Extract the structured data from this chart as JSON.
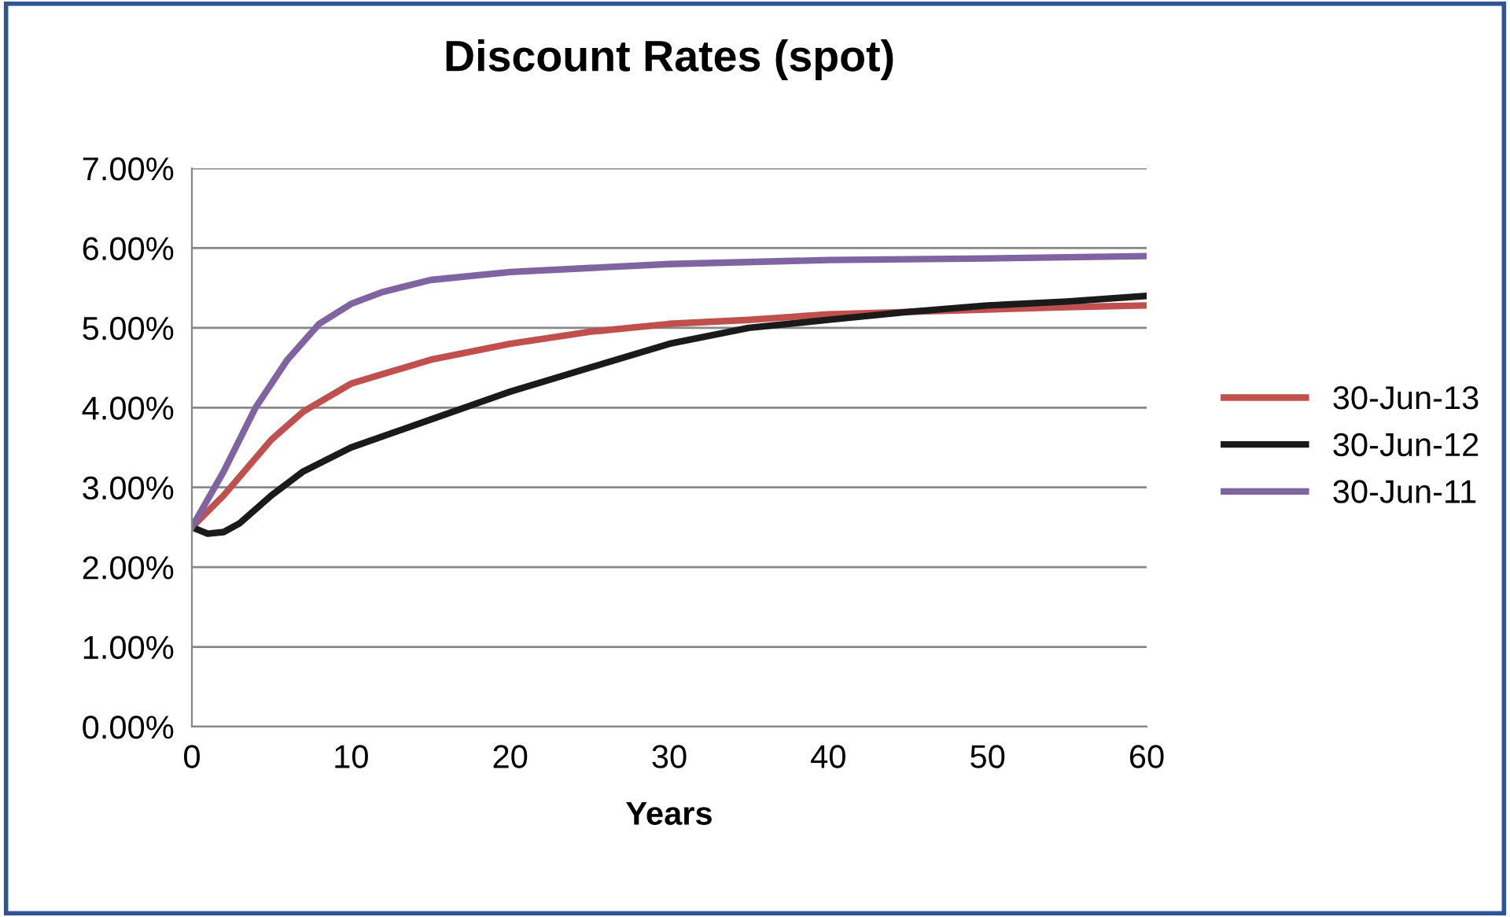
{
  "chart_data": {
    "type": "line",
    "title": "Discount Rates (spot)",
    "xlabel": "Years",
    "series": [
      {
        "name": "30-Jun-13",
        "color": "#c0504d",
        "x": [
          0,
          2,
          5,
          7,
          10,
          15,
          20,
          25,
          30,
          35,
          40,
          45,
          50,
          55,
          60
        ],
        "values": [
          2.5,
          2.9,
          3.6,
          3.95,
          4.3,
          4.6,
          4.8,
          4.95,
          5.05,
          5.1,
          5.17,
          5.2,
          5.23,
          5.26,
          5.28
        ]
      },
      {
        "name": "30-Jun-12",
        "color": "#1a1a1a",
        "x": [
          0,
          1,
          2,
          3,
          5,
          7,
          10,
          15,
          20,
          25,
          30,
          35,
          40,
          45,
          50,
          55,
          60
        ],
        "values": [
          2.5,
          2.42,
          2.44,
          2.55,
          2.9,
          3.2,
          3.5,
          3.85,
          4.2,
          4.5,
          4.8,
          5.0,
          5.1,
          5.2,
          5.28,
          5.33,
          5.4
        ]
      },
      {
        "name": "30-Jun-11",
        "color": "#8064a2",
        "x": [
          0,
          2,
          4,
          6,
          8,
          10,
          12,
          15,
          20,
          25,
          30,
          40,
          50,
          60
        ],
        "values": [
          2.5,
          3.2,
          4.0,
          4.6,
          5.05,
          5.3,
          5.45,
          5.6,
          5.7,
          5.75,
          5.8,
          5.85,
          5.87,
          5.9
        ]
      }
    ],
    "xlim": [
      0,
      60
    ],
    "xticks": [
      0,
      10,
      20,
      30,
      40,
      50,
      60
    ],
    "ylim": [
      0,
      7
    ],
    "yticks": [
      {
        "value": 0,
        "label": "0.00%"
      },
      {
        "value": 1,
        "label": "1.00%"
      },
      {
        "value": 2,
        "label": "2.00%"
      },
      {
        "value": 3,
        "label": "3.00%"
      },
      {
        "value": 4,
        "label": "4.00%"
      },
      {
        "value": 5,
        "label": "5.00%"
      },
      {
        "value": 6,
        "label": "6.00%"
      },
      {
        "value": 7,
        "label": "7.00%"
      }
    ],
    "grid": "y",
    "legend": "right",
    "marker": "none",
    "line_style": "solid"
  }
}
